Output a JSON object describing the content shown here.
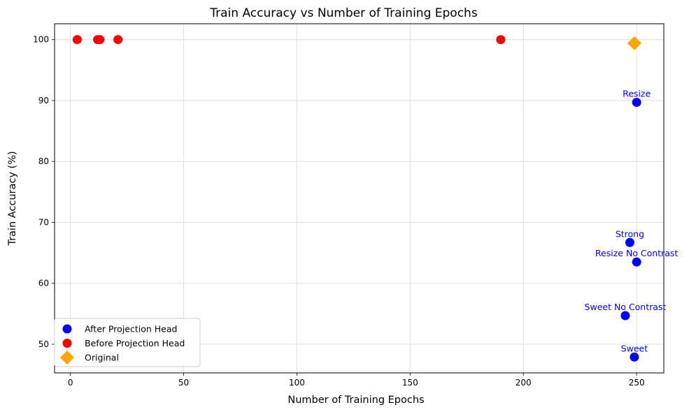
{
  "chart_data": {
    "type": "scatter",
    "title": "Train Accuracy vs Number of Training Epochs",
    "xlabel": "Number of Training Epochs",
    "ylabel": "Train Accuracy (%)",
    "xlim": [
      -7,
      262
    ],
    "ylim": [
      45.3,
      102.6
    ],
    "xticks": [
      0,
      50,
      100,
      150,
      200,
      250
    ],
    "yticks": [
      50,
      60,
      70,
      80,
      90,
      100
    ],
    "grid": true,
    "legend_position": "lower-left",
    "series": [
      {
        "name": "After Projection Head",
        "color": "#0000ff",
        "marker": "circle",
        "points": [
          {
            "x": 250,
            "y": 89.7,
            "label": "Resize"
          },
          {
            "x": 247,
            "y": 66.7,
            "label": "Strong"
          },
          {
            "x": 250,
            "y": 63.5,
            "label": "Resize No Contrast"
          },
          {
            "x": 245,
            "y": 54.7,
            "label": "Sweet No Contrast"
          },
          {
            "x": 249,
            "y": 47.9,
            "label": "Sweet"
          }
        ]
      },
      {
        "name": "Before Projection Head",
        "color": "#ff0000",
        "marker": "circle",
        "points": [
          {
            "x": 3,
            "y": 100
          },
          {
            "x": 12,
            "y": 100
          },
          {
            "x": 13,
            "y": 100
          },
          {
            "x": 21,
            "y": 100
          },
          {
            "x": 190,
            "y": 100
          }
        ]
      },
      {
        "name": "Original",
        "color": "#ffa500",
        "marker": "diamond",
        "points": [
          {
            "x": 249,
            "y": 99.4
          }
        ]
      }
    ]
  }
}
